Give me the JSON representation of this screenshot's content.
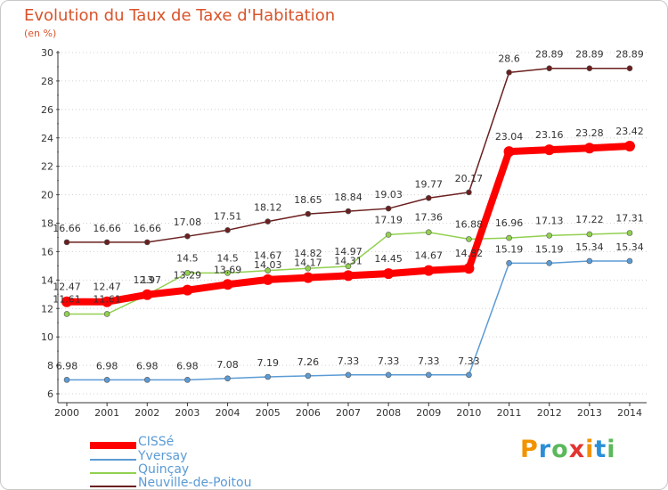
{
  "header": {
    "title": "Evolution du Taux de Taxe d'Habitation",
    "subtitle": "(en %)"
  },
  "logo": {
    "letters": [
      {
        "char": "P",
        "color": "#f39200"
      },
      {
        "char": "r",
        "color": "#2a8fd8"
      },
      {
        "char": "o",
        "color": "#5bb85b"
      },
      {
        "char": "x",
        "color": "#e3342f"
      },
      {
        "char": "i",
        "color": "#f39200"
      },
      {
        "char": "t",
        "color": "#2a8fd8"
      },
      {
        "char": "i",
        "color": "#5bb85b"
      }
    ]
  },
  "chart_data": {
    "type": "line",
    "x": [
      "2000",
      "2001",
      "2002",
      "2003",
      "2004",
      "2005",
      "2006",
      "2007",
      "2008",
      "2009",
      "2010",
      "2011",
      "2012",
      "2013",
      "2014"
    ],
    "ylim": [
      6,
      30
    ],
    "yticks": [
      6,
      8,
      10,
      12,
      14,
      16,
      18,
      20,
      22,
      24,
      26,
      28,
      30
    ],
    "grid": "horizontal dotted",
    "legend_position": "bottom-left",
    "series": [
      {
        "name": "CISSé",
        "color": "#ff0000",
        "values": [
          12.47,
          12.47,
          12.97,
          13.29,
          13.69,
          14.03,
          14.17,
          14.31,
          14.45,
          14.67,
          14.82,
          23.04,
          23.16,
          23.28,
          23.42
        ],
        "labels": [
          "12.47",
          "12.47",
          "12.97",
          "13.29",
          "13.69",
          "14.03",
          "14.17",
          "14.31",
          "14.45",
          "14.67",
          "14.82",
          "23.04",
          "23.16",
          "23.28",
          "23.42"
        ]
      },
      {
        "name": "Yversay",
        "color": "#5b9bd5",
        "values": [
          6.98,
          6.98,
          6.98,
          6.98,
          7.08,
          7.19,
          7.26,
          7.33,
          7.33,
          7.33,
          7.33,
          15.19,
          15.19,
          15.34,
          15.34
        ],
        "labels": [
          "6.98",
          "6.98",
          "6.98",
          "6.98",
          "7.08",
          "7.19",
          "7.26",
          "7.33",
          "7.33",
          "7.33",
          "7.33",
          "15.19",
          "15.19",
          "15.34",
          "15.34"
        ]
      },
      {
        "name": "Quinçay",
        "color": "#92d050",
        "values": [
          11.61,
          11.61,
          12.97,
          14.5,
          14.5,
          14.67,
          14.82,
          14.97,
          17.19,
          17.36,
          16.88,
          16.96,
          17.13,
          17.22,
          17.31
        ],
        "labels": [
          "11.61",
          "11.61",
          "13",
          "14.5",
          "14.5",
          "14.67",
          "14.82",
          "14.97",
          "17.19",
          "17.36",
          "16.88",
          "16.96",
          "17.13",
          "17.22",
          "17.31"
        ]
      },
      {
        "name": "Neuville-de-Poitou",
        "color": "#6b1f1f",
        "values": [
          16.66,
          16.66,
          16.66,
          17.08,
          17.51,
          18.12,
          18.65,
          18.84,
          19.03,
          19.77,
          20.17,
          28.6,
          28.89,
          28.89,
          28.89
        ],
        "labels": [
          "16.66",
          "16.66",
          "16.66",
          "17.08",
          "17.51",
          "18.12",
          "18.65",
          "18.84",
          "19.03",
          "19.77",
          "20.17",
          "28.6",
          "28.89",
          "28.89",
          "28.89"
        ]
      }
    ]
  }
}
